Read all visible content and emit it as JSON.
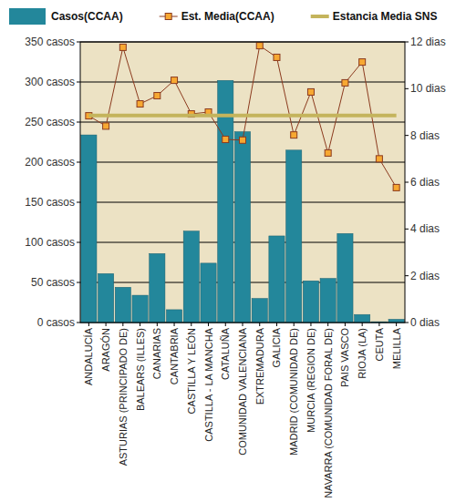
{
  "chart_data": {
    "type": "bar",
    "categories": [
      "ANDALUCÍA",
      "ARAGÓN",
      "ASTURIAS (PRINCIPADO DE)",
      "BALEARS (ILLES)",
      "CANARIAS",
      "CANTABRIA",
      "CASTILLA Y LEÓN",
      "CASTILLA - LA MANCHA",
      "CATALUÑA",
      "COMUNIDAD VALENCIANA",
      "EXTREMADURA",
      "GALICIA",
      "MADRID (COMUNIDAD DE)",
      "MURCIA (REGION DE)",
      "NAVARRA (COMUNIDAD FORAL DE)",
      "PAIS VASCO",
      "RIOJA (LA)",
      "CEUTA",
      "MELILLA"
    ],
    "series": [
      {
        "name": "Casos(CCAA)",
        "type": "bar",
        "color": "#23879b",
        "values": [
          234,
          61,
          44,
          34,
          86,
          16,
          114,
          74,
          302,
          238,
          30,
          108,
          215,
          52,
          55,
          111,
          10,
          1,
          4
        ]
      },
      {
        "name": "Est. Media(CCAA)",
        "type": "line",
        "axis": "y2",
        "color": "#8b3a1e",
        "marker": "square",
        "values": [
          8.84,
          8.4,
          11.77,
          9.35,
          9.7,
          10.36,
          8.92,
          9.0,
          7.83,
          7.8,
          11.84,
          11.34,
          8.02,
          9.86,
          7.25,
          10.25,
          11.14,
          7.0,
          5.77
        ]
      },
      {
        "name": "Estancia Media SNS",
        "type": "line",
        "axis": "y2",
        "color": "#c4b45c",
        "marker": "none",
        "values": [
          8.85,
          8.85,
          8.85,
          8.85,
          8.85,
          8.85,
          8.85,
          8.85,
          8.85,
          8.85,
          8.85,
          8.85,
          8.85,
          8.85,
          8.85,
          8.85,
          8.85,
          8.85,
          8.85
        ]
      }
    ],
    "ylim": [
      0,
      350
    ],
    "yticks": [
      {
        "value": 0,
        "label": "0 casos"
      },
      {
        "value": 50,
        "label": "50 casos"
      },
      {
        "value": 100,
        "label": "100 casos"
      },
      {
        "value": 150,
        "label": "150 casos"
      },
      {
        "value": 200,
        "label": "200 casos"
      },
      {
        "value": 250,
        "label": "250 casos"
      },
      {
        "value": 300,
        "label": "300 casos"
      },
      {
        "value": 350,
        "label": "350 casos"
      }
    ],
    "y2lim": [
      0,
      12
    ],
    "y2ticks": [
      {
        "value": 0,
        "label": "0 dias"
      },
      {
        "value": 2,
        "label": "2 dias"
      },
      {
        "value": 4,
        "label": "4 dias"
      },
      {
        "value": 6,
        "label": "6 dias"
      },
      {
        "value": 8,
        "label": "8 dias"
      },
      {
        "value": 10,
        "label": "10 dias"
      },
      {
        "value": 12,
        "label": "12 dias"
      }
    ],
    "grid": true,
    "legend": "top"
  }
}
